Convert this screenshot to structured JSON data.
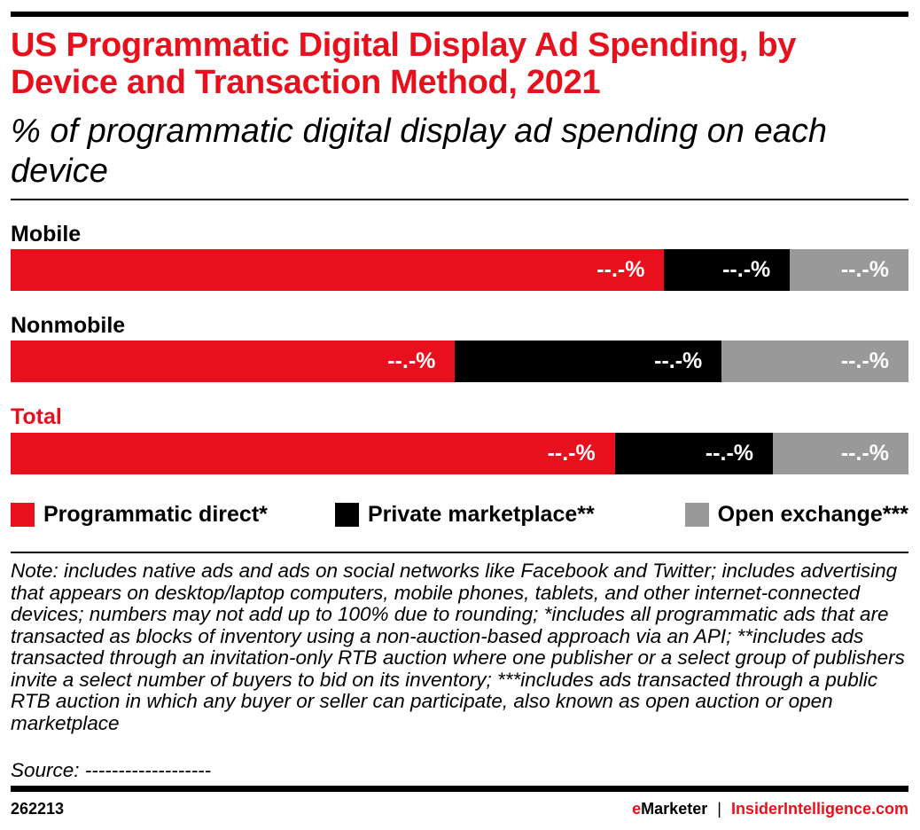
{
  "chart_data": {
    "type": "bar",
    "orientation": "horizontal",
    "stacked": true,
    "title": "US Programmatic Digital Display Ad Spending, by Device and Transaction Method, 2021",
    "subtitle": "% of programmatic digital display ad spending on each device",
    "categories": [
      "Mobile",
      "Nonmobile",
      "Total"
    ],
    "series": [
      {
        "name": "Programmatic direct*",
        "color": "#e8101d",
        "values": [
          72.8,
          49.5,
          67.3
        ],
        "labels": [
          "--.-%",
          "--.-%",
          "--.-%"
        ]
      },
      {
        "name": "Private marketplace**",
        "color": "#000000",
        "values": [
          14.0,
          29.7,
          17.6
        ],
        "labels": [
          "--.-%",
          "--.-%",
          "--.-%"
        ]
      },
      {
        "name": "Open exchange***",
        "color": "#999999",
        "values": [
          13.2,
          20.8,
          15.1
        ],
        "labels": [
          "--.-%",
          "--.-%",
          "--.-%"
        ]
      }
    ],
    "xlim": [
      0,
      100
    ],
    "grid": false,
    "legend_position": "bottom",
    "highlight_category": "Total"
  },
  "note": "Note: includes native ads and ads on social networks like Facebook and Twitter; includes advertising that appears on desktop/laptop computers, mobile phones, tablets, and other internet-connected devices; numbers may not add up to 100% due to rounding; *includes all programmatic ads that are transacted as blocks of inventory using a non-auction-based approach via an API; **includes ads transacted through an invitation-only RTB auction where one publisher or a select group of publishers invite a select number of buyers to bid on its inventory; ***includes ads transacted through a public RTB auction in which any buyer or seller can participate, also known as open auction or open marketplace",
  "source": "Source: -------------------",
  "footer": {
    "chart_id": "262213",
    "brand_e": "e",
    "brand_rest": "Marketer",
    "separator": "|",
    "site": "InsiderIntelligence.com"
  },
  "colors": {
    "accent": "#e8101d",
    "black": "#000000",
    "gray": "#999999"
  }
}
